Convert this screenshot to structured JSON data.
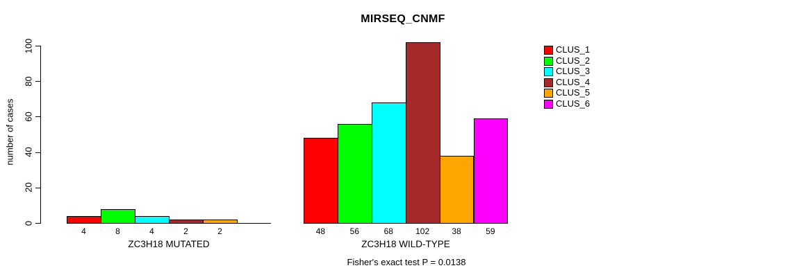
{
  "chart_data": {
    "type": "bar",
    "title": "MIRSEQ_CNMF",
    "ylabel": "number of cases",
    "ylim": [
      0,
      100
    ],
    "yticks": [
      0,
      20,
      40,
      60,
      80,
      100
    ],
    "grid": false,
    "legend_position": "right",
    "series_labels": [
      "CLUS_1",
      "CLUS_2",
      "CLUS_3",
      "CLUS_4",
      "CLUS_5",
      "CLUS_6"
    ],
    "series_colors": [
      "#ff0000",
      "#00ff00",
      "#00ffff",
      "#a52a2a",
      "#ffa500",
      "#ff00ff"
    ],
    "groups": [
      {
        "label": "ZC3H18 MUTATED",
        "values": [
          4,
          8,
          4,
          2,
          2,
          0
        ]
      },
      {
        "label": "ZC3H18 WILD-TYPE",
        "values": [
          48,
          56,
          68,
          102,
          38,
          59
        ]
      }
    ],
    "bar_value_labels_shown": true,
    "annotation": "Fisher's exact test P = 0.0138"
  }
}
